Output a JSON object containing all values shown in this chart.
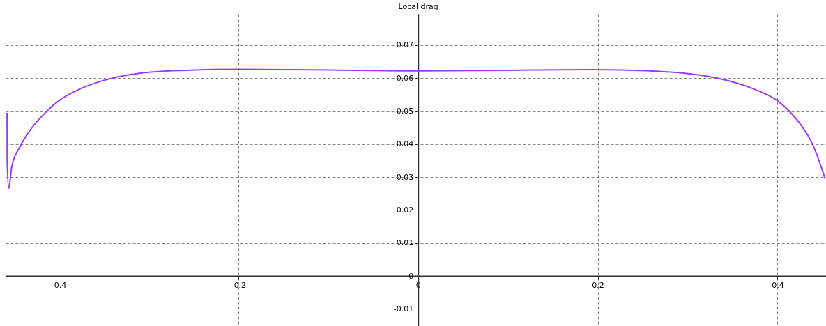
{
  "chart_data": {
    "type": "line",
    "ylabel": "Local drag",
    "x": [
      -0.4574,
      -0.4572,
      -0.4554,
      -0.4522,
      -0.4419,
      -0.4315,
      -0.4134,
      -0.4,
      -0.3747,
      -0.3488,
      -0.31,
      -0.2584,
      -0.2,
      -0.1,
      0,
      0.1,
      0.1938,
      0.2584,
      0.2971,
      0.3333,
      0.3747,
      0.4004,
      0.4134,
      0.4264,
      0.4393,
      0.447,
      0.4529
    ],
    "series": [
      {
        "color": "#9b3cf0",
        "values": [
          0.0495,
          0.0345,
          0.0266,
          0.033,
          0.0397,
          0.0443,
          0.0499,
          0.0531,
          0.0569,
          0.0594,
          0.0615,
          0.0624,
          0.0627,
          0.0625,
          0.0622,
          0.0624,
          0.0626,
          0.0622,
          0.0615,
          0.06,
          0.0566,
          0.0531,
          0.0499,
          0.0457,
          0.0398,
          0.0344,
          0.0295
        ]
      }
    ],
    "xlim": [
      -0.459,
      0.454
    ],
    "ylim": [
      -0.0152,
      0.0795
    ],
    "xticks": [
      -0.4,
      -0.2,
      0,
      0.2,
      0.4
    ],
    "yticks": [
      -0.01,
      0,
      0.01,
      0.02,
      0.03,
      0.04,
      0.05,
      0.06,
      0.07
    ],
    "grid": true,
    "marker": "none",
    "line_style": "solid"
  }
}
